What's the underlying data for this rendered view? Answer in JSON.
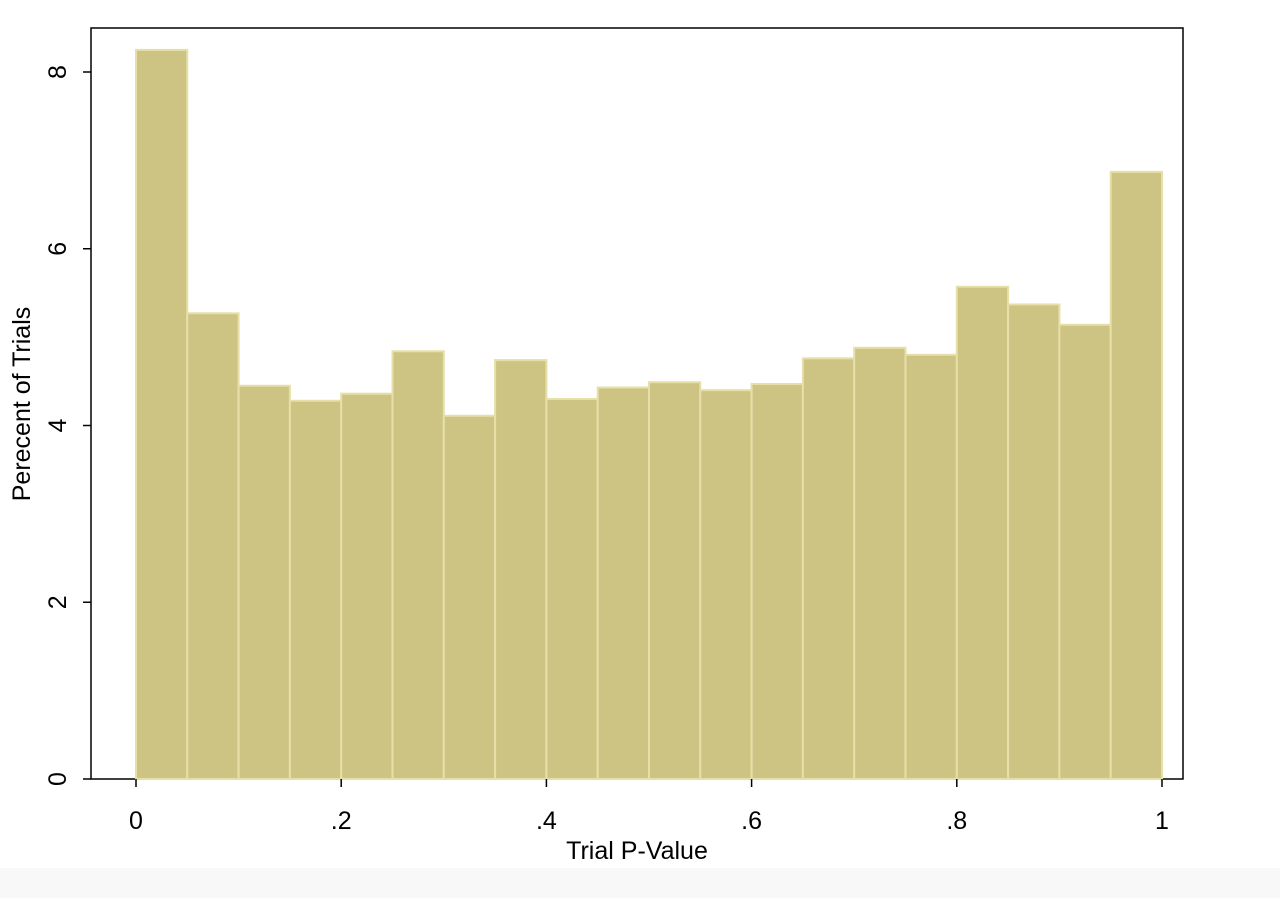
{
  "chart_data": {
    "type": "bar",
    "xlabel": "Trial P-Value",
    "ylabel": "Perecent of Trials",
    "xlim": [
      -0.08,
      1.0
    ],
    "ylim": [
      0,
      8.3
    ],
    "x_ticks": [
      {
        "value": 0,
        "label": "0"
      },
      {
        "value": 0.2,
        "label": ".2"
      },
      {
        "value": 0.4,
        "label": ".4"
      },
      {
        "value": 0.6,
        "label": ".6"
      },
      {
        "value": 0.8,
        "label": ".8"
      },
      {
        "value": 1.0,
        "label": "1"
      }
    ],
    "y_ticks": [
      {
        "value": 0,
        "label": "0"
      },
      {
        "value": 2,
        "label": "2"
      },
      {
        "value": 4,
        "label": "4"
      },
      {
        "value": 6,
        "label": "6"
      },
      {
        "value": 8,
        "label": "8"
      }
    ],
    "bin_width": 0.05,
    "bins": [
      {
        "start": 0.0,
        "end": 0.05,
        "value": 8.25
      },
      {
        "start": 0.05,
        "end": 0.1,
        "value": 5.27
      },
      {
        "start": 0.1,
        "end": 0.15,
        "value": 4.45
      },
      {
        "start": 0.15,
        "end": 0.2,
        "value": 4.28
      },
      {
        "start": 0.2,
        "end": 0.25,
        "value": 4.36
      },
      {
        "start": 0.25,
        "end": 0.3,
        "value": 4.84
      },
      {
        "start": 0.3,
        "end": 0.35,
        "value": 4.11
      },
      {
        "start": 0.35,
        "end": 0.4,
        "value": 4.74
      },
      {
        "start": 0.4,
        "end": 0.45,
        "value": 4.3
      },
      {
        "start": 0.45,
        "end": 0.5,
        "value": 4.43
      },
      {
        "start": 0.5,
        "end": 0.55,
        "value": 4.49
      },
      {
        "start": 0.55,
        "end": 0.6,
        "value": 4.4
      },
      {
        "start": 0.6,
        "end": 0.65,
        "value": 4.47
      },
      {
        "start": 0.65,
        "end": 0.7,
        "value": 4.76
      },
      {
        "start": 0.7,
        "end": 0.75,
        "value": 4.88
      },
      {
        "start": 0.75,
        "end": 0.8,
        "value": 4.8
      },
      {
        "start": 0.8,
        "end": 0.85,
        "value": 5.57
      },
      {
        "start": 0.85,
        "end": 0.9,
        "value": 5.37
      },
      {
        "start": 0.9,
        "end": 0.95,
        "value": 5.14
      },
      {
        "start": 0.95,
        "end": 1.0,
        "value": 6.87
      }
    ],
    "grid": false,
    "legend": "none",
    "colors": {
      "bar_fill": "#cdc484",
      "bar_stroke": "#e6e0a8",
      "axis": "#000000"
    }
  }
}
